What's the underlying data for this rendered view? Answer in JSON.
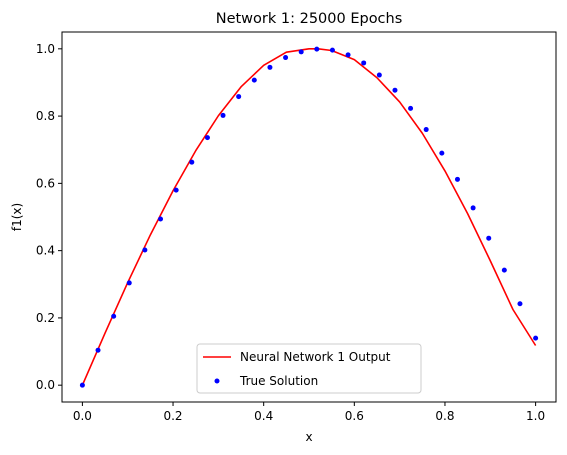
{
  "chart_data": {
    "type": "line",
    "title": "Network 1: 25000 Epochs",
    "xlabel": "x",
    "ylabel": "f1(x)",
    "xlim": [
      -0.045,
      1.045
    ],
    "ylim": [
      -0.05,
      1.05
    ],
    "x_ticks": [
      "0.0",
      "0.2",
      "0.4",
      "0.6",
      "0.8",
      "1.0"
    ],
    "x_tick_values": [
      0.0,
      0.2,
      0.4,
      0.6,
      0.8,
      1.0
    ],
    "y_ticks": [
      "0.0",
      "0.2",
      "0.4",
      "0.6",
      "0.8",
      "1.0"
    ],
    "y_tick_values": [
      0.0,
      0.2,
      0.4,
      0.6,
      0.8,
      1.0
    ],
    "grid": false,
    "legend_position": "lower center",
    "series": [
      {
        "name": "Neural Network 1 Output",
        "style": "line",
        "color": "#ff0000",
        "x": [
          0.0,
          0.05,
          0.1,
          0.15,
          0.2,
          0.25,
          0.3,
          0.35,
          0.4,
          0.45,
          0.5,
          0.52,
          0.55,
          0.6,
          0.65,
          0.7,
          0.75,
          0.8,
          0.85,
          0.9,
          0.95,
          1.0
        ],
        "y": [
          0.0,
          0.155,
          0.305,
          0.447,
          0.578,
          0.697,
          0.801,
          0.887,
          0.951,
          0.99,
          1.0,
          1.0,
          0.995,
          0.968,
          0.914,
          0.842,
          0.749,
          0.637,
          0.51,
          0.37,
          0.225,
          0.118
        ]
      },
      {
        "name": "True Solution",
        "style": "markers",
        "color": "#0000ff",
        "x": [
          0.0,
          0.0345,
          0.069,
          0.1034,
          0.1379,
          0.1724,
          0.2069,
          0.2414,
          0.2759,
          0.3103,
          0.3448,
          0.3793,
          0.4138,
          0.4483,
          0.4828,
          0.5172,
          0.5517,
          0.5862,
          0.6207,
          0.6552,
          0.6897,
          0.7241,
          0.7586,
          0.7931,
          0.8276,
          0.8621,
          0.8966,
          0.931,
          0.9655,
          1.0
        ],
        "y": [
          0.0,
          0.104,
          0.205,
          0.304,
          0.402,
          0.494,
          0.58,
          0.663,
          0.736,
          0.802,
          0.858,
          0.907,
          0.945,
          0.974,
          0.991,
          0.999,
          0.996,
          0.982,
          0.958,
          0.922,
          0.877,
          0.823,
          0.76,
          0.69,
          0.612,
          0.527,
          0.437,
          0.342,
          0.242,
          0.14
        ]
      }
    ]
  }
}
